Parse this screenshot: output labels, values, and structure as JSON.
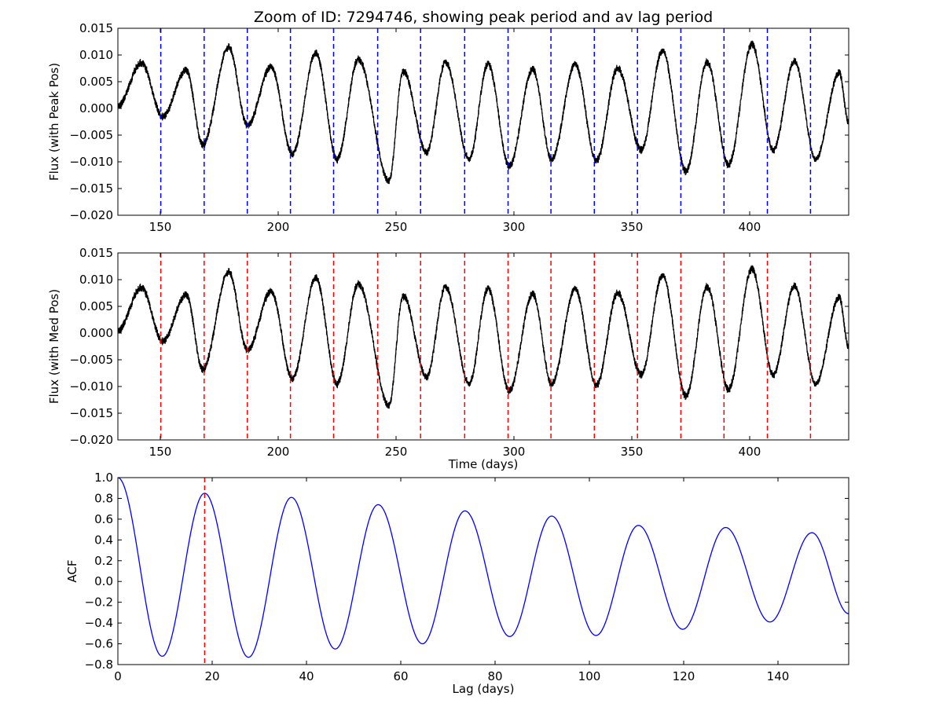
{
  "figure": {
    "title": "Zoom of ID: 7294746, showing peak period and av lag period"
  },
  "chart_data": [
    {
      "type": "line",
      "name": "flux-peak",
      "ylabel": "Flux (with Peak Pos)",
      "xlabel": "",
      "xlim": [
        132,
        442
      ],
      "ylim": [
        -0.02,
        0.015
      ],
      "xticks": [
        "150",
        "200",
        "250",
        "300",
        "350",
        "400"
      ],
      "yticks": [
        "0.015",
        "0.010",
        "0.005",
        "0.000",
        "−0.005",
        "−0.010",
        "−0.015",
        "−0.020"
      ],
      "line_color": "#000000",
      "vline_color": "#0000ff",
      "vlines": [
        150.2,
        168.6,
        186.9,
        205.2,
        223.5,
        242.2,
        260.4,
        279.1,
        297.5,
        315.7,
        334.1,
        352.4,
        370.8,
        389.1,
        407.5,
        425.8
      ],
      "peaks_x": [
        142,
        161,
        179,
        197,
        216,
        234,
        253,
        271,
        289,
        308,
        326,
        344,
        363,
        382,
        401,
        419,
        438
      ],
      "peaks_y": [
        0.0085,
        0.0072,
        0.0115,
        0.0078,
        0.0103,
        0.0092,
        0.007,
        0.0086,
        0.0083,
        0.0073,
        0.0082,
        0.0075,
        0.0108,
        0.0087,
        0.012,
        0.0088,
        0.0067
      ],
      "troughs_x": [
        151,
        168,
        187,
        206,
        225,
        247,
        263,
        281,
        298,
        316,
        335,
        354,
        373,
        391,
        410,
        428
      ],
      "troughs_y": [
        -0.0015,
        -0.0068,
        -0.0032,
        -0.0085,
        -0.0095,
        -0.0135,
        -0.0082,
        -0.0095,
        -0.0108,
        -0.0095,
        -0.0098,
        -0.0078,
        -0.0118,
        -0.0105,
        -0.0078,
        -0.0095
      ]
    },
    {
      "type": "line",
      "name": "flux-med",
      "ylabel": "Flux (with Med Pos)",
      "xlabel": "Time (days)",
      "xlim": [
        132,
        442
      ],
      "ylim": [
        -0.02,
        0.015
      ],
      "xticks": [
        "150",
        "200",
        "250",
        "300",
        "350",
        "400"
      ],
      "yticks": [
        "0.015",
        "0.010",
        "0.005",
        "0.000",
        "−0.005",
        "−0.010",
        "−0.015",
        "−0.020"
      ],
      "line_color": "#000000",
      "vline_color": "#ff0000",
      "vlines": [
        150.2,
        168.6,
        186.9,
        205.2,
        223.5,
        242.2,
        260.4,
        279.1,
        297.5,
        315.7,
        334.1,
        352.4,
        370.8,
        389.1,
        407.5,
        425.8
      ],
      "peaks_x": [
        142,
        161,
        179,
        197,
        216,
        234,
        253,
        271,
        289,
        308,
        326,
        344,
        363,
        382,
        401,
        419,
        438
      ],
      "peaks_y": [
        0.0085,
        0.0072,
        0.0115,
        0.0078,
        0.0103,
        0.0092,
        0.007,
        0.0086,
        0.0083,
        0.0073,
        0.0082,
        0.0075,
        0.0108,
        0.0087,
        0.012,
        0.0088,
        0.0067
      ],
      "troughs_x": [
        151,
        168,
        187,
        206,
        225,
        247,
        263,
        281,
        298,
        316,
        335,
        354,
        373,
        391,
        410,
        428
      ],
      "troughs_y": [
        -0.0015,
        -0.0068,
        -0.0032,
        -0.0085,
        -0.0095,
        -0.0135,
        -0.0082,
        -0.0095,
        -0.0108,
        -0.0095,
        -0.0098,
        -0.0078,
        -0.0118,
        -0.0105,
        -0.0078,
        -0.0095
      ]
    },
    {
      "type": "line",
      "name": "acf",
      "ylabel": "ACF",
      "xlabel": "Lag (days)",
      "xlim": [
        0,
        155
      ],
      "ylim": [
        -0.8,
        1.0
      ],
      "xticks": [
        "0",
        "20",
        "40",
        "60",
        "80",
        "100",
        "120",
        "140"
      ],
      "yticks": [
        "1.0",
        "0.8",
        "0.6",
        "0.4",
        "0.2",
        "0.0",
        "−0.2",
        "−0.4",
        "−0.6",
        "−0.8"
      ],
      "line_color": "#0000ff",
      "vline_color": "#ff0000",
      "vlines": [
        18.4
      ],
      "extrema_x": [
        0,
        9.4,
        18.4,
        27.7,
        36.8,
        46.1,
        55.2,
        64.6,
        73.6,
        83.1,
        92.0,
        101.4,
        110.4,
        119.8,
        128.9,
        138.3,
        147.2,
        155
      ],
      "extrema_y": [
        1.0,
        -0.72,
        0.85,
        -0.73,
        0.81,
        -0.65,
        0.74,
        -0.6,
        0.68,
        -0.53,
        0.63,
        -0.52,
        0.54,
        -0.46,
        0.52,
        -0.39,
        0.47,
        -0.31
      ]
    }
  ]
}
